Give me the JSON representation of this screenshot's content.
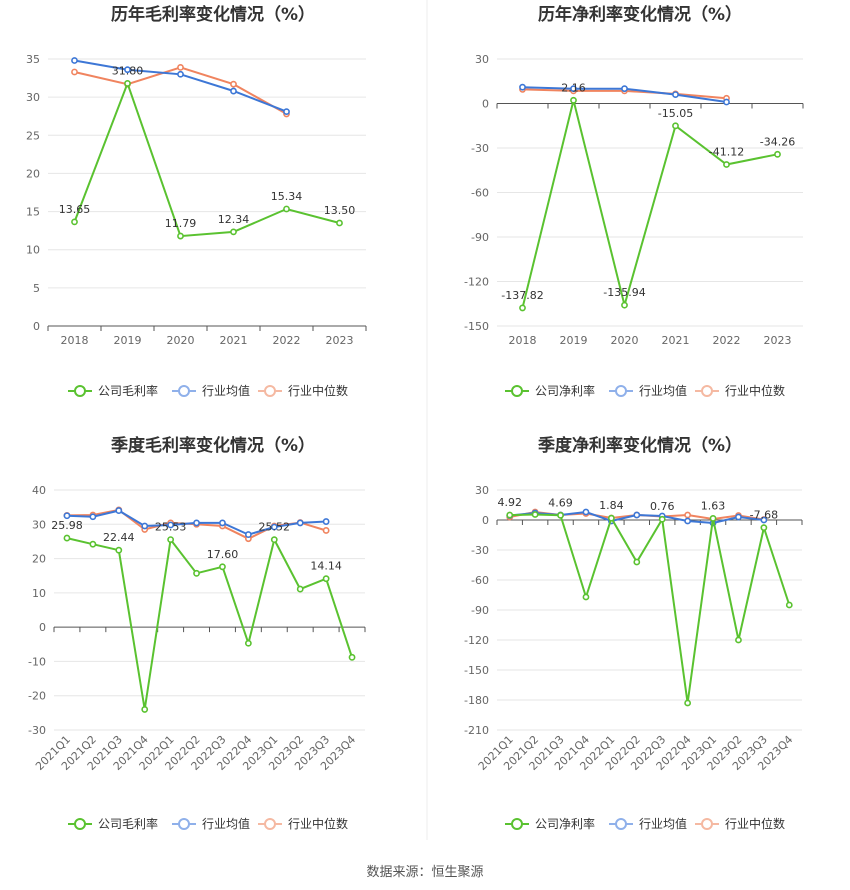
{
  "colors": {
    "company": "#5ac230",
    "industry_avg": "#3d77d6",
    "industry_median": "#f0845f",
    "legend_avg": "#8fb0ea",
    "legend_median": "#f5b9a2",
    "grid": "#e6e6e6",
    "divider": "#ececec"
  },
  "footer": "数据来源：恒生聚源",
  "chart_data": [
    {
      "type": "line",
      "title": "历年毛利率变化情况（%）",
      "categories": [
        "2018",
        "2019",
        "2020",
        "2021",
        "2022",
        "2023"
      ],
      "ylim": [
        0,
        35
      ],
      "yticks": [
        0,
        5,
        10,
        15,
        20,
        25,
        30,
        35
      ],
      "series": [
        {
          "name": "公司毛利率",
          "values": [
            13.65,
            31.8,
            11.79,
            12.34,
            15.34,
            13.5
          ]
        },
        {
          "name": "行业均值",
          "values": [
            34.8,
            33.6,
            33.0,
            30.8,
            28.1,
            null
          ]
        },
        {
          "name": "行业中位数",
          "values": [
            33.3,
            31.7,
            33.9,
            31.7,
            27.8,
            null
          ]
        }
      ],
      "labels": [
        "13.65",
        "31.80",
        "11.79",
        "12.34",
        "15.34",
        "13.50"
      ]
    },
    {
      "type": "line",
      "title": "历年净利率变化情况（%）",
      "categories": [
        "2018",
        "2019",
        "2020",
        "2021",
        "2022",
        "2023"
      ],
      "ylim": [
        -150,
        30
      ],
      "yticks": [
        -150,
        -120,
        -90,
        -60,
        -30,
        0,
        30
      ],
      "series": [
        {
          "name": "公司净利率",
          "values": [
            -137.82,
            2.16,
            -135.94,
            -15.05,
            -41.12,
            -34.26
          ]
        },
        {
          "name": "行业均值",
          "values": [
            11.0,
            10.0,
            10.0,
            6.0,
            1.0,
            null
          ]
        },
        {
          "name": "行业中位数",
          "values": [
            9.5,
            8.5,
            8.5,
            6.5,
            3.5,
            null
          ]
        }
      ],
      "labels": [
        "-137.82",
        "2.16",
        "-135.94",
        "-15.05",
        "-41.12",
        "-34.26"
      ]
    },
    {
      "type": "line",
      "title": "季度毛利率变化情况（%）",
      "categories": [
        "2021Q1",
        "2021Q2",
        "2021Q3",
        "2021Q4",
        "2022Q1",
        "2022Q2",
        "2022Q3",
        "2022Q4",
        "2023Q1",
        "2023Q2",
        "2023Q3",
        "2023Q4"
      ],
      "ylim": [
        -30,
        40
      ],
      "yticks": [
        -30,
        -20,
        -10,
        0,
        10,
        20,
        30,
        40
      ],
      "series": [
        {
          "name": "公司毛利率",
          "values": [
            25.98,
            24.2,
            22.44,
            -24.0,
            25.53,
            15.7,
            17.6,
            -4.7,
            25.52,
            11.1,
            14.14,
            -8.8
          ]
        },
        {
          "name": "行业均值",
          "values": [
            32.5,
            32.2,
            34.0,
            29.5,
            29.8,
            30.4,
            30.4,
            27.0,
            29.2,
            30.4,
            30.8,
            null
          ]
        },
        {
          "name": "行业中位数",
          "values": [
            32.6,
            32.7,
            34.2,
            28.5,
            30.4,
            30.0,
            29.5,
            25.8,
            29.5,
            30.5,
            28.2,
            null
          ]
        }
      ],
      "labels": [
        "25.98",
        "",
        "22.44",
        "",
        "25.53",
        "",
        "17.60",
        "",
        "25.52",
        "",
        "14.14",
        ""
      ]
    },
    {
      "type": "line",
      "title": "季度净利率变化情况（%）",
      "categories": [
        "2021Q1",
        "2021Q2",
        "2021Q3",
        "2021Q4",
        "2022Q1",
        "2022Q2",
        "2022Q3",
        "2022Q4",
        "2023Q1",
        "2023Q2",
        "2023Q3",
        "2023Q4"
      ],
      "ylim": [
        -210,
        30
      ],
      "yticks": [
        -210,
        -180,
        -150,
        -120,
        -90,
        -60,
        -30,
        0,
        30
      ],
      "series": [
        {
          "name": "公司净利率",
          "values": [
            4.92,
            5.5,
            4.69,
            -77.0,
            1.84,
            -42.0,
            0.76,
            -183.0,
            1.63,
            -120.0,
            -7.68,
            -85.0
          ]
        },
        {
          "name": "行业均值",
          "values": [
            4.5,
            7.0,
            5.0,
            8.0,
            -1.0,
            5.0,
            4.0,
            -1.0,
            -3.0,
            3.0,
            0.0,
            null
          ]
        },
        {
          "name": "行业中位数",
          "values": [
            3.0,
            8.0,
            5.0,
            6.5,
            2.0,
            5.0,
            3.5,
            5.0,
            1.0,
            4.5,
            0.5,
            null
          ]
        }
      ],
      "labels": [
        "4.92",
        "",
        "4.69",
        "",
        "1.84",
        "",
        "0.76",
        "",
        "1.63",
        "",
        "-7.68",
        ""
      ]
    }
  ]
}
